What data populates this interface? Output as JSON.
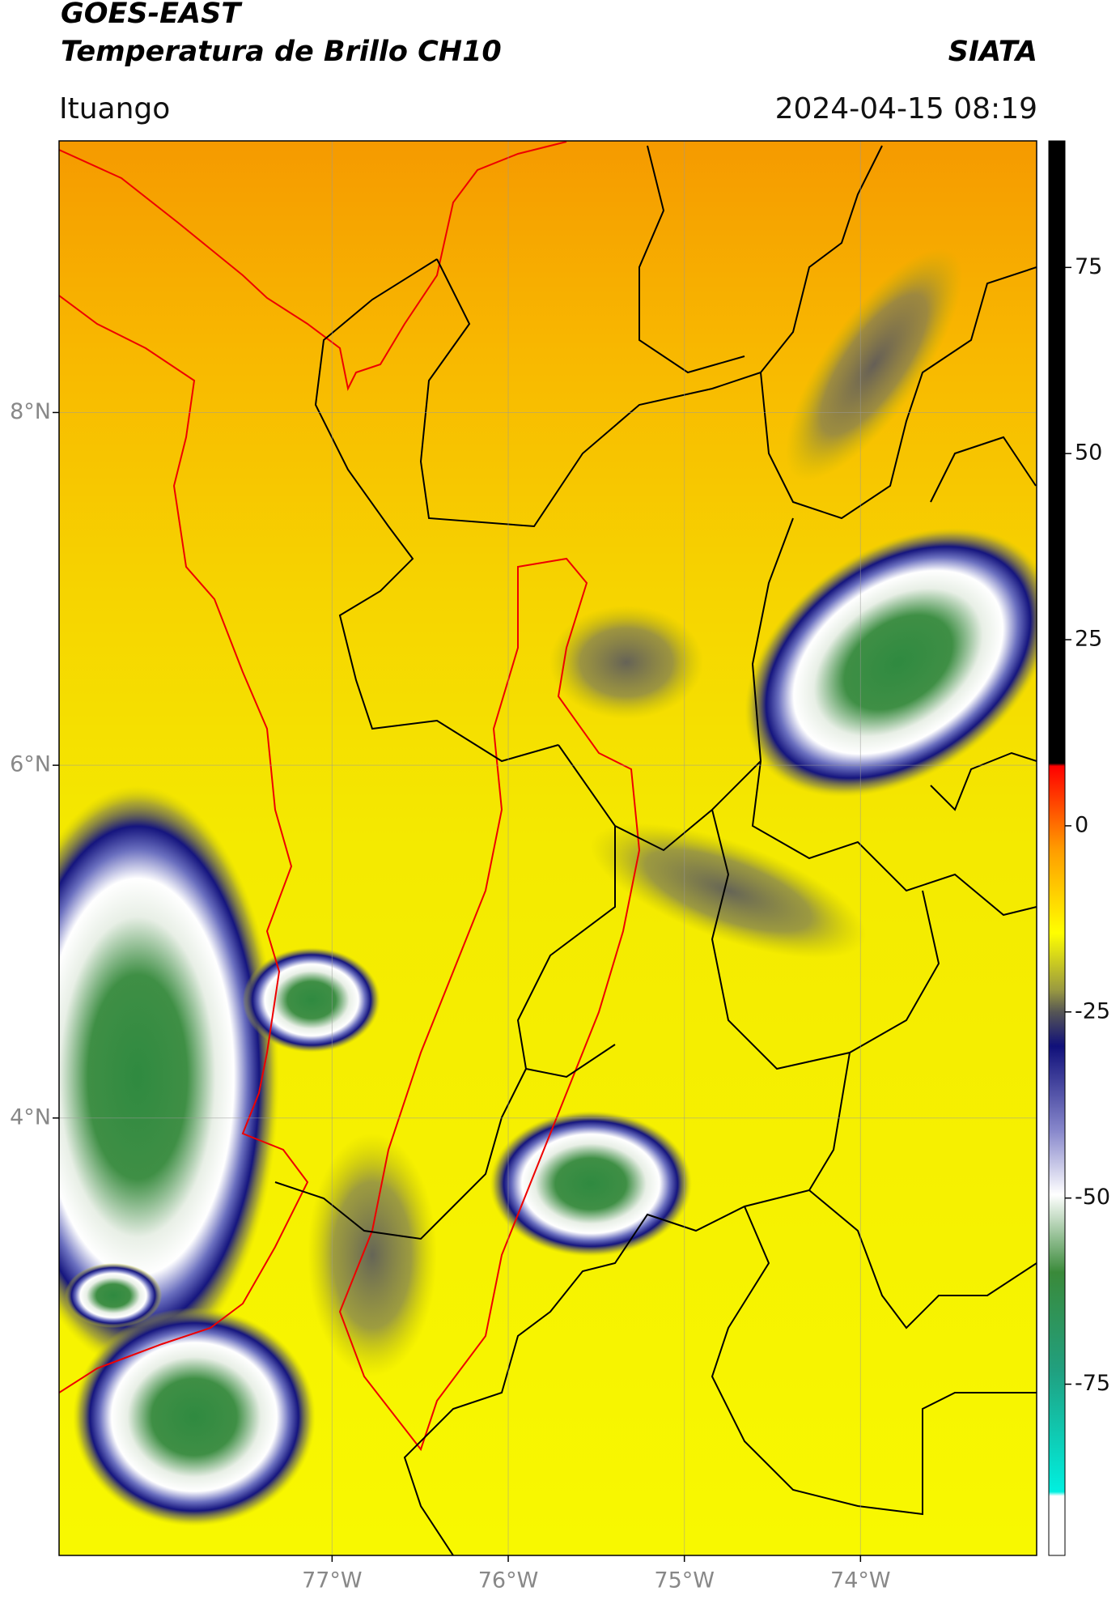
{
  "chart_data": {
    "type": "map",
    "title": "GOES-EAST",
    "subtitle": "Temperatura de Brillo CH10",
    "source": "SIATA",
    "region": "Ituango",
    "datetime": "2024-04-15 08:19",
    "xlim": [
      -78.55,
      -73.0
    ],
    "ylim": [
      1.52,
      9.54
    ],
    "xticks": [
      {
        "value": -77,
        "label": "77°W"
      },
      {
        "value": -76,
        "label": "76°W"
      },
      {
        "value": -75,
        "label": "75°W"
      },
      {
        "value": -74,
        "label": "74°W"
      }
    ],
    "yticks": [
      {
        "value": 8,
        "label": "8°N"
      },
      {
        "value": 6,
        "label": "6°N"
      },
      {
        "value": 4,
        "label": "4°N"
      }
    ],
    "grid": true,
    "colorbar": {
      "lim": [
        -98,
        92
      ],
      "ticks": [
        75,
        50,
        25,
        0,
        -25,
        -50,
        -75
      ]
    }
  }
}
